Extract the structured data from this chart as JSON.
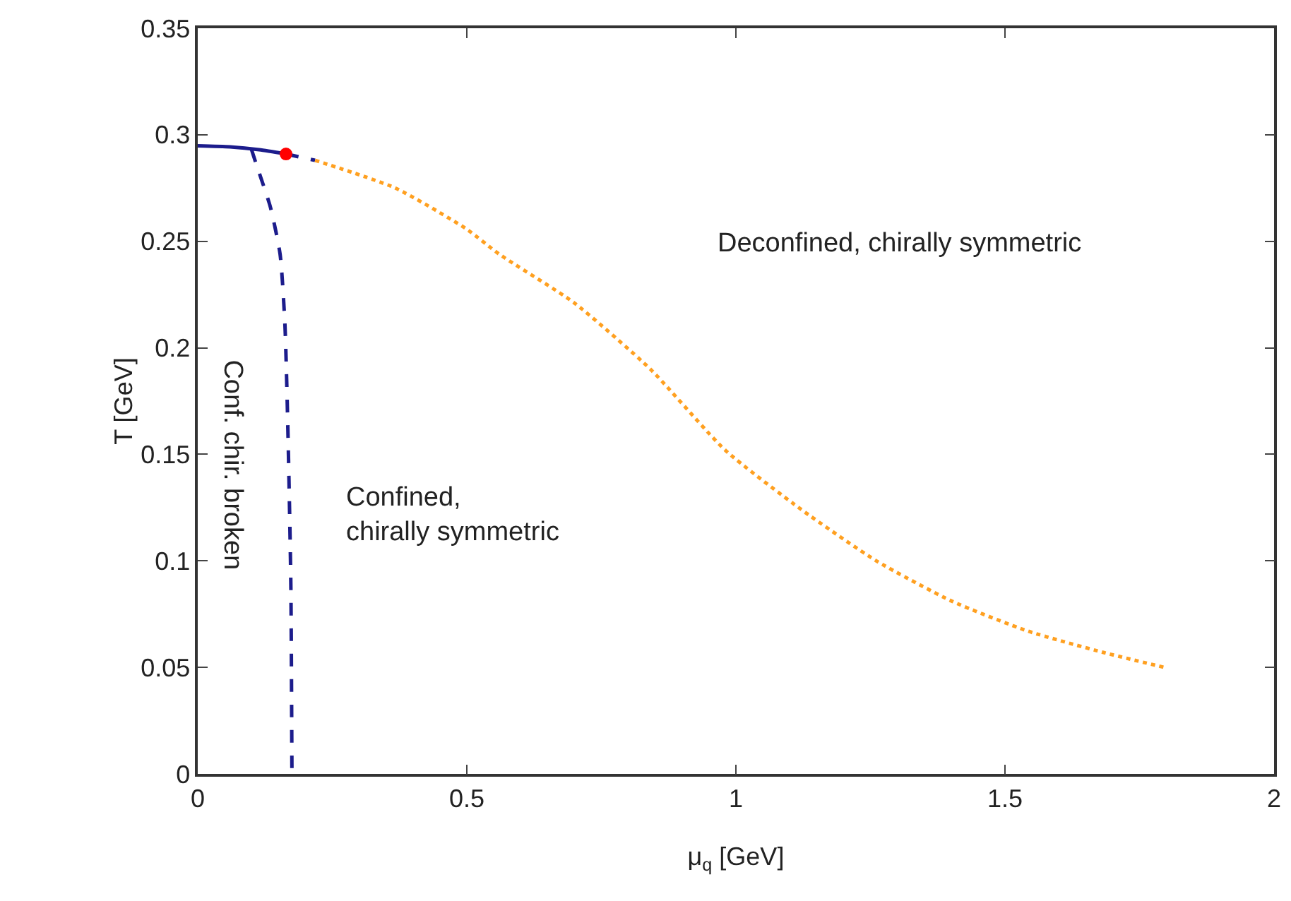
{
  "chart_data": {
    "type": "line",
    "xlabel": "μ$_{q}$ [GeV]",
    "ylabel": "T [GeV]",
    "xlim": [
      0,
      2
    ],
    "xticks": [
      0,
      0.5,
      1,
      1.5,
      2
    ],
    "ylim": [
      0,
      0.35
    ],
    "yticks": [
      0,
      0.05,
      0.1,
      0.15,
      0.2,
      0.25,
      0.3,
      0.35
    ],
    "grid": false,
    "series": [
      {
        "type": "line",
        "color": "#1c1c8c",
        "line_style": "solid",
        "x": [
          0,
          0.06,
          0.114,
          0.164
        ],
        "values": [
          0.2948,
          0.2943,
          0.293,
          0.291
        ]
      },
      {
        "type": "line",
        "color": "#1c1c8c",
        "line_style": "dashed",
        "x": [
          0.164,
          0.19,
          0.218
        ],
        "values": [
          0.291,
          0.2895,
          0.288
        ]
      },
      {
        "type": "line",
        "color": "#1c1c8c",
        "line_style": "dashed",
        "x": [
          0.1,
          0.109,
          0.135,
          0.153,
          0.162,
          0.168,
          0.173,
          0.175
        ],
        "values": [
          0.293,
          0.286,
          0.266,
          0.244,
          0.211,
          0.156,
          0.089,
          0
        ]
      },
      {
        "type": "line",
        "color": "#ffa020",
        "line_style": "dotted",
        "x": [
          0.218,
          0.367,
          0.498,
          0.56,
          0.7,
          0.841,
          0.98,
          1.122,
          1.261,
          1.402,
          1.543,
          1.683,
          1.796
        ],
        "values": [
          0.288,
          0.275,
          0.256,
          0.244,
          0.221,
          0.19,
          0.152,
          0.124,
          0.1,
          0.081,
          0.067,
          0.057,
          0.05
        ]
      },
      {
        "type": "scatter",
        "color": "#ff0000",
        "marker": "circle",
        "x": [
          0.164
        ],
        "values": [
          0.291
        ]
      }
    ],
    "annotations": [
      "Deconfined, chirally symmetric",
      "Confined,\nchirally symmetric",
      "Conf. chir. broken"
    ]
  }
}
